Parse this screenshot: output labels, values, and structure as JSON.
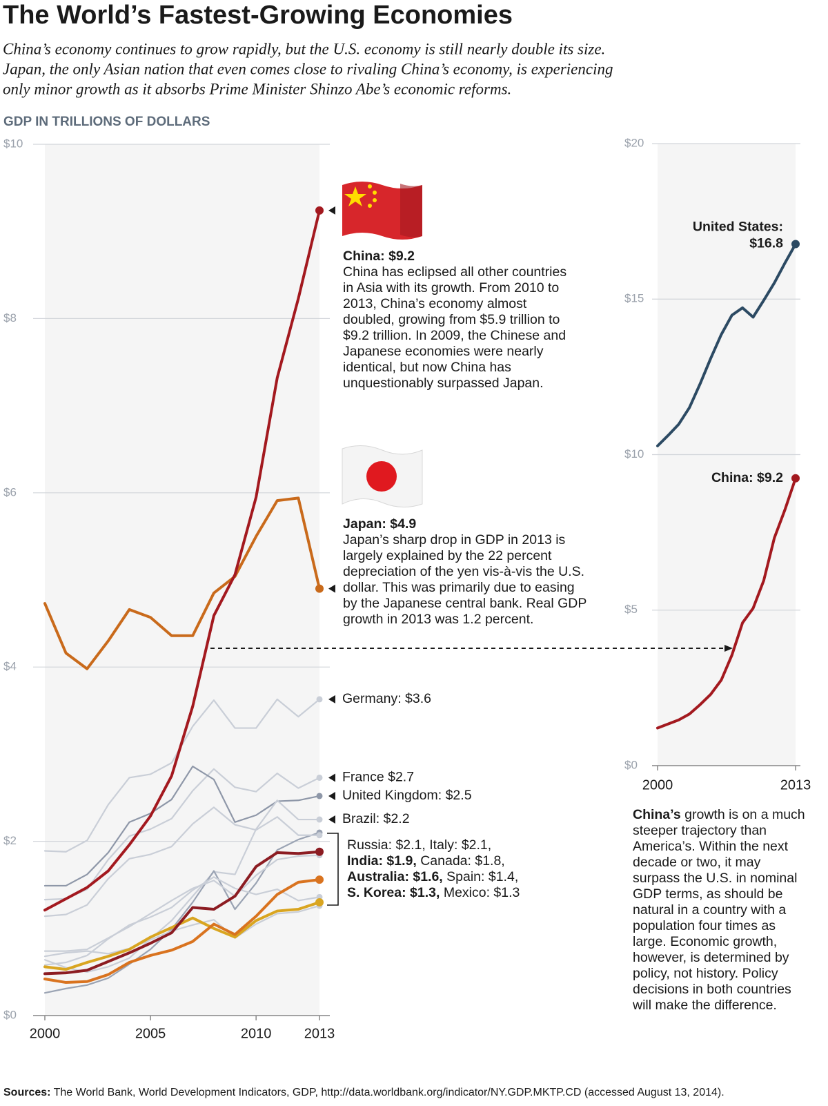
{
  "title": "The World’s Fastest-Growing Economies",
  "subtitle": [
    "China’s economy continues to grow rapidly, but the U.S. economy is still nearly double its size.",
    "Japan, the only Asian nation that even comes close to rivaling China’s economy, is experiencing",
    "only minor growth as it absorbs Prime Minister Shinzo Abe’s economic reforms."
  ],
  "axis_label": "GDP IN TRILLIONS OF DOLLARS",
  "chart_data": [
    {
      "type": "line",
      "grid": true,
      "x": [
        2000,
        2001,
        2002,
        2003,
        2004,
        2005,
        2006,
        2007,
        2008,
        2009,
        2010,
        2011,
        2012,
        2013
      ],
      "xlim": [
        2000,
        2013
      ],
      "xticks": [
        2000,
        2005,
        2010,
        2013
      ],
      "ylim": [
        0,
        10
      ],
      "yticks": [
        {
          "value": 0,
          "label": "$0"
        },
        {
          "value": 2,
          "label": "$2"
        },
        {
          "value": 4,
          "label": "$4"
        },
        {
          "value": 6,
          "label": "$6"
        },
        {
          "value": 8,
          "label": "$8"
        },
        {
          "value": 10,
          "label": "$10"
        }
      ],
      "series": [
        {
          "color": "#c9ced7",
          "label": "Germany: $3.6",
          "values": [
            1.89,
            1.88,
            2.01,
            2.42,
            2.73,
            2.77,
            2.9,
            3.32,
            3.62,
            3.3,
            3.3,
            3.63,
            3.43,
            3.63
          ]
        },
        {
          "color": "#c9ced7",
          "label": "France $2.7",
          "values": [
            1.33,
            1.34,
            1.45,
            1.79,
            2.06,
            2.14,
            2.26,
            2.58,
            2.83,
            2.62,
            2.57,
            2.78,
            2.61,
            2.73
          ]
        },
        {
          "color": "#8e97a8",
          "label": "United Kingdom: $2.5",
          "values": [
            1.49,
            1.49,
            1.62,
            1.87,
            2.22,
            2.32,
            2.48,
            2.86,
            2.71,
            2.22,
            2.3,
            2.46,
            2.47,
            2.52
          ]
        },
        {
          "color": "#c9ced7",
          "label": "Brazil: $2.2",
          "values": [
            0.64,
            0.55,
            0.5,
            0.56,
            0.66,
            0.88,
            1.09,
            1.37,
            1.65,
            1.62,
            2.14,
            2.47,
            2.25,
            2.25
          ]
        },
        {
          "color": "#9aa3b3",
          "values": [
            0.26,
            0.31,
            0.35,
            0.43,
            0.59,
            0.76,
            0.99,
            1.3,
            1.66,
            1.22,
            1.52,
            1.9,
            2.02,
            2.1
          ]
        },
        {
          "color": "#c9ced7",
          "values": [
            1.14,
            1.16,
            1.27,
            1.57,
            1.8,
            1.85,
            1.94,
            2.2,
            2.39,
            2.19,
            2.13,
            2.28,
            2.07,
            2.07
          ]
        },
        {
          "color": "#c9ced7",
          "values": [
            0.74,
            0.74,
            0.76,
            0.89,
            1.02,
            1.17,
            1.32,
            1.46,
            1.55,
            1.37,
            1.61,
            1.79,
            1.83,
            1.84
          ]
        },
        {
          "color": "#c9ced7",
          "values": [
            0.58,
            0.61,
            0.69,
            0.88,
            1.04,
            1.13,
            1.24,
            1.44,
            1.59,
            1.46,
            1.39,
            1.45,
            1.32,
            1.36
          ]
        },
        {
          "color": "#c9ced7",
          "values": [
            0.68,
            0.72,
            0.74,
            0.71,
            0.77,
            0.87,
            0.97,
            1.04,
            1.1,
            0.89,
            1.05,
            1.17,
            1.19,
            1.26
          ]
        },
        {
          "color": "#d9a520",
          "bold": true,
          "values": [
            0.56,
            0.53,
            0.61,
            0.68,
            0.76,
            0.9,
            1.01,
            1.12,
            1.0,
            0.9,
            1.09,
            1.2,
            1.22,
            1.3
          ]
        },
        {
          "color": "#d9731f",
          "bold": true,
          "values": [
            0.42,
            0.38,
            0.39,
            0.47,
            0.61,
            0.69,
            0.75,
            0.85,
            1.05,
            0.93,
            1.14,
            1.39,
            1.53,
            1.56
          ]
        },
        {
          "color": "#8c1c22",
          "bold": true,
          "values": [
            0.48,
            0.49,
            0.52,
            0.62,
            0.72,
            0.83,
            0.95,
            1.24,
            1.22,
            1.37,
            1.71,
            1.87,
            1.86,
            1.88
          ]
        },
        {
          "color": "#c96a1b",
          "bold": true,
          "values": [
            4.73,
            4.16,
            3.98,
            4.3,
            4.66,
            4.57,
            4.36,
            4.36,
            4.85,
            5.04,
            5.5,
            5.91,
            5.94,
            4.9
          ],
          "callout": {
            "title": "Japan: $4.9",
            "lines": [
              "Japan’s sharp drop in GDP in 2013 is",
              "largely explained by the 22 percent",
              "depreciation of the yen vis-à-vis the U.S.",
              "dollar. This was primarily due to easing",
              "by the Japanese central bank. Real GDP",
              "growth in 2013 was 1.2 percent."
            ]
          }
        },
        {
          "color": "#a3191f",
          "bold": true,
          "values": [
            1.21,
            1.34,
            1.47,
            1.66,
            1.96,
            2.29,
            2.75,
            3.55,
            4.59,
            5.06,
            5.95,
            7.32,
            8.23,
            9.24
          ],
          "callout": {
            "title": "China: $9.2",
            "lines": [
              "China has eclipsed all other countries",
              "in Asia with its growth. From 2010 to",
              "2013, China’s economy almost",
              "doubled, growing from $5.9 trillion to",
              "$9.2 trillion. In 2009, the Chinese and",
              "Japanese economies were nearly",
              "identical, but now China has",
              "unquestionably surpassed Japan."
            ]
          }
        }
      ],
      "bracket_lines": [
        [
          {
            "text": "Russia: $2.1, Italy: $2.1,"
          }
        ],
        [
          {
            "text": "India: $1.9,",
            "bold": true
          },
          {
            "text": " Canada: $1.8,"
          }
        ],
        [
          {
            "text": "Australia: $1.6,",
            "bold": true
          },
          {
            "text": " Spain: $1.4,"
          }
        ],
        [
          {
            "text": "S. Korea: $1.3,",
            "bold": true
          },
          {
            "text": " Mexico: $1.3"
          }
        ]
      ]
    },
    {
      "type": "line",
      "grid": true,
      "x": [
        2000,
        2001,
        2002,
        2003,
        2004,
        2005,
        2006,
        2007,
        2008,
        2009,
        2010,
        2011,
        2012,
        2013
      ],
      "xlim": [
        2000,
        2013
      ],
      "xticks": [
        2000,
        2013
      ],
      "ylim": [
        0,
        20
      ],
      "yticks": [
        {
          "value": 0,
          "label": "$0"
        },
        {
          "value": 5,
          "label": "$5"
        },
        {
          "value": 10,
          "label": "$10"
        },
        {
          "value": 15,
          "label": "$15"
        },
        {
          "value": 20,
          "label": "$20"
        }
      ],
      "series": [
        {
          "color": "#2c4a63",
          "bold": true,
          "label": [
            "United States:",
            "$16.8"
          ],
          "values": [
            10.28,
            10.62,
            10.98,
            11.51,
            12.27,
            13.09,
            13.86,
            14.48,
            14.72,
            14.42,
            14.96,
            15.52,
            16.16,
            16.77
          ]
        },
        {
          "color": "#a3191f",
          "bold": true,
          "label": [
            "China: $9.2"
          ],
          "values": [
            1.21,
            1.34,
            1.47,
            1.66,
            1.96,
            2.29,
            2.75,
            3.55,
            4.59,
            5.06,
            5.95,
            7.32,
            8.23,
            9.24
          ]
        }
      ]
    }
  ],
  "note": [
    [
      {
        "text": "China’s",
        "bold": true
      },
      {
        "text": " growth is on a much"
      }
    ],
    [
      {
        "text": "steeper trajectory than"
      }
    ],
    [
      {
        "text": "America’s. Within the next"
      }
    ],
    [
      {
        "text": "decade or two, it may"
      }
    ],
    [
      {
        "text": "surpass the U.S. in nominal"
      }
    ],
    [
      {
        "text": "GDP terms, as should be"
      }
    ],
    [
      {
        "text": "natural in a country with a"
      }
    ],
    [
      {
        "text": "population four times as"
      }
    ],
    [
      {
        "text": "large. Economic growth,"
      }
    ],
    [
      {
        "text": "however, is determined by"
      }
    ],
    [
      {
        "text": "policy, not history. Policy"
      }
    ],
    [
      {
        "text": "decisions in both countries"
      }
    ],
    [
      {
        "text": "will make the difference."
      }
    ]
  ],
  "sources": [
    {
      "text": "Sources:",
      "bold": true
    },
    {
      "text": " The World Bank, World Development Indicators, GDP, http://data.worldbank.org/indicator/NY.GDP.MKTP.CD (accessed August 13, 2014)."
    }
  ]
}
